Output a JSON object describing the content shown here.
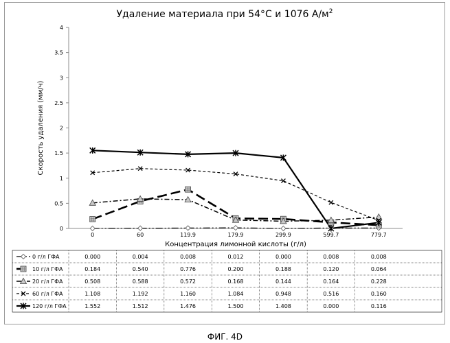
{
  "chart_data": {
    "type": "line",
    "title": "Удаление материала при 54°C и 1076 А/м",
    "title_superscript": "2",
    "xlabel": "Концентрация лимонной кислоты (г/л)",
    "ylabel": "Скорость удаления (мм/ч)",
    "ylim": [
      0,
      4
    ],
    "yticks": [
      "0",
      "0.5",
      "1",
      "1.5",
      "2",
      "2.5",
      "3",
      "3.5",
      "4"
    ],
    "categories": [
      "0",
      "60",
      "119.9",
      "179.9",
      "299.9",
      "599.7",
      "779.7"
    ],
    "series": [
      {
        "name": "0 г/л ГФА",
        "marker": "diamond",
        "dash": "10 3 2 3 2 3",
        "width": 1.2,
        "values": [
          0.0,
          0.004,
          0.008,
          0.012,
          0.0,
          0.008,
          0.008
        ],
        "labels": [
          "0.000",
          "0.004",
          "0.008",
          "0.012",
          "0.000",
          "0.008",
          "0.008"
        ]
      },
      {
        "name": "10 г/л ГФА",
        "marker": "square",
        "dash": "14 6",
        "width": 2.6,
        "values": [
          0.184,
          0.54,
          0.776,
          0.2,
          0.188,
          0.12,
          0.064
        ],
        "labels": [
          "0.184",
          "0.540",
          "0.776",
          "0.200",
          "0.188",
          "0.120",
          "0.064"
        ]
      },
      {
        "name": "20 г/л ГФА",
        "marker": "triangle",
        "dash": "7 3 2 3",
        "width": 1.5,
        "values": [
          0.508,
          0.588,
          0.572,
          0.168,
          0.144,
          0.164,
          0.228
        ],
        "labels": [
          "0.508",
          "0.588",
          "0.572",
          "0.168",
          "0.144",
          "0.164",
          "0.228"
        ]
      },
      {
        "name": "60 г/л ГФА",
        "marker": "x",
        "dash": "4 3",
        "width": 1.2,
        "values": [
          1.108,
          1.192,
          1.16,
          1.084,
          0.948,
          0.516,
          0.16
        ],
        "labels": [
          "1.108",
          "1.192",
          "1.160",
          "1.084",
          "0.948",
          "0.516",
          "0.160"
        ]
      },
      {
        "name": "120 г/л ГФА",
        "marker": "star",
        "dash": "",
        "width": 2.2,
        "values": [
          1.552,
          1.512,
          1.476,
          1.5,
          1.408,
          0.0,
          0.116
        ],
        "labels": [
          "1.552",
          "1.512",
          "1.476",
          "1.500",
          "1.408",
          "0.000",
          "0.116"
        ]
      }
    ]
  },
  "figure_caption": "ФИГ. 4D",
  "colors": {
    "line": "#000000",
    "axis": "#8c8c8c",
    "grid_table": "#000000",
    "marker_fill": "#c8c8c8"
  }
}
